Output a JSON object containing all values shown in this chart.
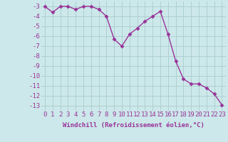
{
  "x": [
    0,
    1,
    2,
    3,
    4,
    5,
    6,
    7,
    8,
    9,
    10,
    11,
    12,
    13,
    14,
    15,
    16,
    17,
    18,
    19,
    20,
    21,
    22,
    23
  ],
  "y": [
    -3.0,
    -3.6,
    -3.0,
    -3.0,
    -3.3,
    -3.0,
    -3.0,
    -3.3,
    -4.0,
    -6.3,
    -7.0,
    -5.8,
    -5.2,
    -4.5,
    -4.0,
    -3.5,
    -5.8,
    -8.5,
    -10.3,
    -10.8,
    -10.8,
    -11.2,
    -11.8,
    -12.9
  ],
  "line_color": "#993399",
  "marker": "D",
  "marker_size": 2.5,
  "bg_color": "#cce8ea",
  "grid_color": "#aacccc",
  "xlabel": "Windchill (Refroidissement éolien,°C)",
  "xlim": [
    -0.5,
    23.5
  ],
  "ylim": [
    -13.5,
    -2.5
  ],
  "yticks": [
    -13,
    -12,
    -11,
    -10,
    -9,
    -8,
    -7,
    -6,
    -5,
    -4,
    -3
  ],
  "xticks": [
    0,
    1,
    2,
    3,
    4,
    5,
    6,
    7,
    8,
    9,
    10,
    11,
    12,
    13,
    14,
    15,
    16,
    17,
    18,
    19,
    20,
    21,
    22,
    23
  ],
  "xlabel_fontsize": 6.5,
  "tick_fontsize": 6.5,
  "line_width": 1.0
}
